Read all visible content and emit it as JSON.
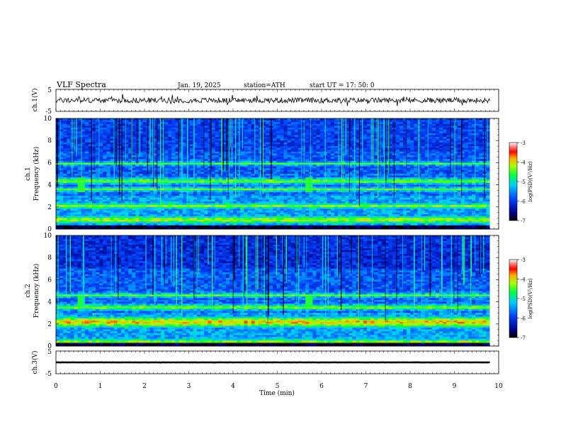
{
  "header": {
    "title": "VLF  Spectra",
    "date": "Jan. 19, 2025",
    "station": "station=ATH",
    "start": "start  UT  =   17: 50: 0"
  },
  "chart_data": [
    {
      "type": "line",
      "name": "ch1-waveform",
      "ylabel": "ch.1(V)",
      "ylim": [
        -5,
        5
      ],
      "yticks": [
        "5",
        "-5"
      ],
      "xlim": [
        0,
        10
      ],
      "duration_min": 9.8,
      "baseline_v": 0.0,
      "noise_amplitude_v": 1.2
    },
    {
      "type": "heatmap",
      "name": "ch1-spectrogram",
      "ylabel_top": "ch.1",
      "ylabel": "Frequency (kHz)",
      "ylim": [
        0,
        10
      ],
      "yticks": [
        "0",
        "2",
        "4",
        "6",
        "8",
        "10"
      ],
      "xlim": [
        0,
        10
      ],
      "duration_min": 9.8,
      "bright_bands_khz": [
        0.8,
        2.1,
        3.6,
        4.3,
        5.9
      ],
      "bursts_min": [
        0.6,
        5.7
      ],
      "colorbar": {
        "label": "log(PSD)(V²/Hz)",
        "range": [
          -7,
          -3
        ],
        "ticks": [
          "-3",
          "-4",
          "-5",
          "-6",
          "-7"
        ]
      }
    },
    {
      "type": "heatmap",
      "name": "ch2-spectrogram",
      "ylabel_top": "ch.2",
      "ylabel": "Frequency (kHz)",
      "ylim": [
        0,
        10
      ],
      "yticks": [
        "0",
        "2",
        "4",
        "6",
        "8",
        "10"
      ],
      "xlim": [
        0,
        10
      ],
      "duration_min": 9.8,
      "bright_bands_khz": [
        0.3,
        2.0,
        2.3,
        3.5,
        4.6
      ],
      "bursts_min": [
        0.6,
        5.7
      ],
      "colorbar": {
        "label": "log(PSD)(V²/Hz)",
        "range": [
          -7,
          -3
        ],
        "ticks": [
          "-3",
          "-4",
          "-5",
          "-6",
          "-7"
        ]
      }
    },
    {
      "type": "line",
      "name": "ch3-waveform",
      "ylabel": "ch.3(V)",
      "ylim": [
        -5,
        5
      ],
      "yticks": [
        "5",
        "-5"
      ],
      "xlim": [
        0,
        10
      ],
      "duration_min": 9.8,
      "baseline_v": 0.0,
      "noise_amplitude_v": 0.05,
      "xlabel": "Time  (min)",
      "xticks": [
        "0",
        "1",
        "2",
        "3",
        "4",
        "5",
        "6",
        "7",
        "8",
        "9",
        "10"
      ]
    }
  ]
}
